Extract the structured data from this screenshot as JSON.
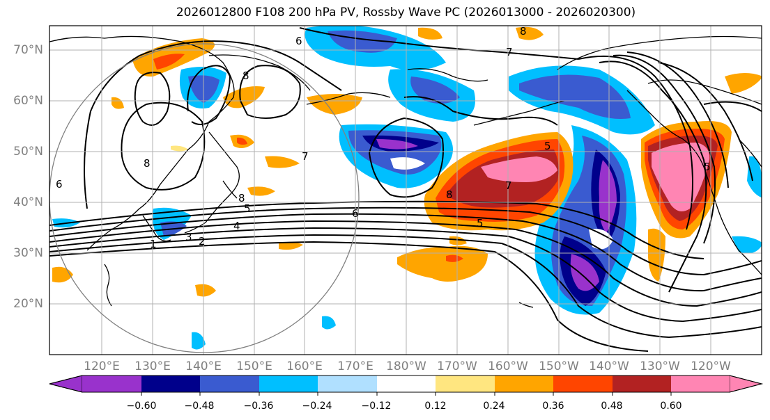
{
  "title": "2026012800 F108 200 hPa PV, Rossby Wave PC (2026013000 - 2026020300)",
  "lat_labels": [
    "70°N",
    "60°N",
    "50°N",
    "40°N",
    "30°N",
    "20°N"
  ],
  "lon_labels": [
    "120°E",
    "130°E",
    "140°E",
    "150°E",
    "160°E",
    "170°E",
    "180°W",
    "170°W",
    "160°W",
    "150°W",
    "140°W",
    "130°W",
    "120°W"
  ],
  "contour_labels": [
    "6",
    "7",
    "8",
    "8",
    "8",
    "8",
    "7",
    "6",
    "5",
    "4",
    "3",
    "2",
    "1",
    "7",
    "5",
    "5",
    "8",
    "6",
    "5"
  ],
  "colorbar": {
    "colors": [
      "#9932CC",
      "#00008B",
      "#3A5BD0",
      "#00BFFF",
      "#B0E0FF",
      "#FFFFFF",
      "#FFE680",
      "#FFA500",
      "#FF4500",
      "#B22222",
      "#FF85B3"
    ],
    "tick_labels": [
      "−0.60",
      "−0.48",
      "−0.36",
      "−0.24",
      "−0.12",
      "0.12",
      "0.24",
      "0.36",
      "0.48",
      "0.60"
    ]
  }
}
